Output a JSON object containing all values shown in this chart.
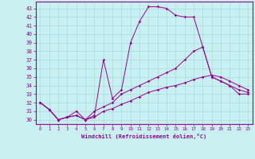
{
  "xlabel": "Windchill (Refroidissement éolien,°C)",
  "bg_color": "#c8f0f0",
  "grid_color": "#a8dcdc",
  "line_color": "#990099",
  "xlim": [
    -0.5,
    23.5
  ],
  "ylim": [
    29.5,
    43.8
  ],
  "xticks": [
    0,
    1,
    2,
    3,
    4,
    5,
    6,
    7,
    8,
    9,
    10,
    11,
    12,
    13,
    14,
    15,
    16,
    17,
    18,
    19,
    20,
    21,
    22,
    23
  ],
  "yticks": [
    30,
    31,
    32,
    33,
    34,
    35,
    36,
    37,
    38,
    39,
    40,
    41,
    42,
    43
  ],
  "series": [
    {
      "x": [
        0,
        1,
        2,
        3,
        4,
        5,
        6,
        7,
        8,
        9,
        10,
        11,
        12,
        13,
        14,
        15,
        16,
        17,
        18,
        19,
        20,
        21,
        22,
        23
      ],
      "y": [
        32,
        31.2,
        30,
        30.3,
        31.0,
        30.0,
        30.5,
        37.0,
        32.5,
        33.5,
        39.0,
        41.5,
        43.2,
        43.2,
        43.0,
        42.2,
        42.0,
        42.0,
        38.5,
        35.0,
        34.5,
        34.0,
        33.0,
        33.0
      ]
    },
    {
      "x": [
        0,
        1,
        2,
        3,
        4,
        5,
        6,
        7,
        8,
        9,
        10,
        11,
        12,
        13,
        14,
        15,
        16,
        17,
        18,
        19,
        20,
        21,
        22,
        23
      ],
      "y": [
        32,
        31.2,
        30,
        30.3,
        30.5,
        30.0,
        31.0,
        31.5,
        32.0,
        33.0,
        33.5,
        34.0,
        34.5,
        35.0,
        35.5,
        36.0,
        37.0,
        38.0,
        38.5,
        35.0,
        34.5,
        34.0,
        33.5,
        33.2
      ]
    },
    {
      "x": [
        0,
        1,
        2,
        3,
        4,
        5,
        6,
        7,
        8,
        9,
        10,
        11,
        12,
        13,
        14,
        15,
        16,
        17,
        18,
        19,
        20,
        21,
        22,
        23
      ],
      "y": [
        32,
        31.2,
        30,
        30.3,
        30.5,
        30.0,
        30.3,
        31.0,
        31.3,
        31.8,
        32.2,
        32.7,
        33.2,
        33.5,
        33.8,
        34.0,
        34.3,
        34.7,
        35.0,
        35.2,
        35.0,
        34.5,
        34.0,
        33.5
      ]
    }
  ]
}
